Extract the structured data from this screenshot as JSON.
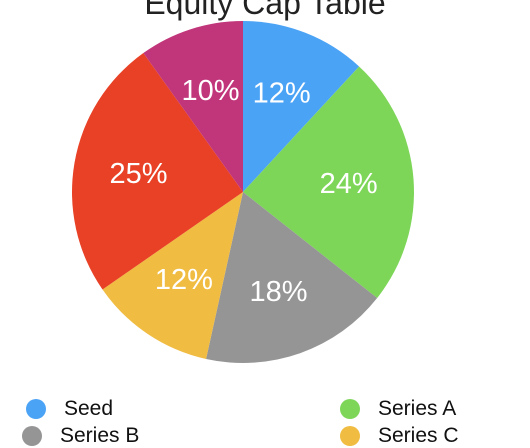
{
  "chart_data": {
    "type": "pie",
    "title": "Equity Cap Table",
    "slices": [
      {
        "name": "Seed",
        "value": 12,
        "label": "12%",
        "color": "#4BA3F6"
      },
      {
        "name": "Series A",
        "value": 24,
        "label": "24%",
        "color": "#7ED659"
      },
      {
        "name": "Series B",
        "value": 18,
        "label": "18%",
        "color": "#959595"
      },
      {
        "name": "Series C",
        "value": 12,
        "label": "12%",
        "color": "#F0BC42"
      },
      {
        "name": "",
        "value": 25,
        "label": "25%",
        "color": "#E84125"
      },
      {
        "name": "",
        "value": 10,
        "label": "10%",
        "color": "#C1357A"
      }
    ],
    "legend": {
      "placement": "bottom",
      "items": [
        "Seed",
        "Series A",
        "Series B",
        "Series C"
      ]
    }
  }
}
